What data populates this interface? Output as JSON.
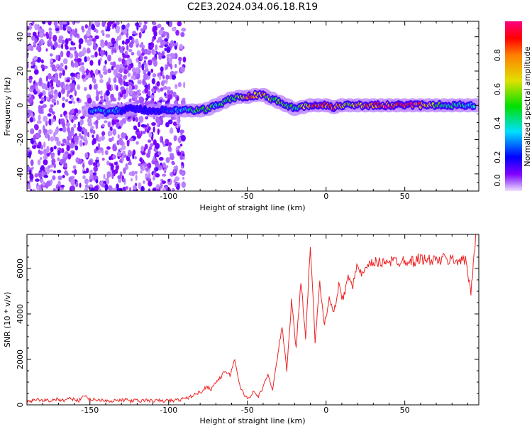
{
  "title": "C2E3.2024.034.06.18.R19",
  "chart_data": [
    {
      "type": "heatmap",
      "xlabel": "Height of straight line (km)",
      "ylabel": "Frequency (Hz)",
      "xlim": [
        -190,
        97
      ],
      "ylim": [
        -50,
        49
      ],
      "xticks": [
        -150,
        -100,
        -50,
        0,
        50
      ],
      "yticks": [
        -40,
        -20,
        0,
        20,
        40
      ],
      "colorbar": {
        "label": "Normalized spectral amplitude",
        "range": [
          0,
          1
        ],
        "ticks": [
          "0.0",
          "0.2",
          "0.4",
          "0.6",
          "0.8"
        ]
      },
      "noise_region_km": [
        -190,
        -90
      ],
      "ridge": [
        [
          -150,
          -3,
          0.3
        ],
        [
          -145,
          -3,
          0.35
        ],
        [
          -140,
          -4,
          0.3
        ],
        [
          -135,
          -3,
          0.35
        ],
        [
          -130,
          -3,
          0.25
        ],
        [
          -125,
          -2,
          0.2
        ],
        [
          -110,
          -3,
          0.2
        ],
        [
          -100,
          -3,
          0.25
        ],
        [
          -95,
          -3,
          0.3
        ],
        [
          -90,
          -3,
          0.35
        ],
        [
          -85,
          -3,
          0.5
        ],
        [
          -80,
          -3,
          0.55
        ],
        [
          -75,
          -2,
          0.6
        ],
        [
          -70,
          0,
          0.45
        ],
        [
          -65,
          2,
          0.5
        ],
        [
          -60,
          4,
          0.5
        ],
        [
          -55,
          5,
          0.6
        ],
        [
          -50,
          5,
          0.9
        ],
        [
          -45,
          6,
          0.7
        ],
        [
          -40,
          6,
          0.75
        ],
        [
          -35,
          4,
          0.55
        ],
        [
          -30,
          2,
          0.6
        ],
        [
          -25,
          0,
          0.5
        ],
        [
          -20,
          -2,
          0.5
        ],
        [
          -15,
          -1,
          0.6
        ],
        [
          -10,
          0,
          0.75
        ],
        [
          -5,
          0,
          0.9
        ],
        [
          0,
          0,
          0.85
        ],
        [
          5,
          -1,
          0.9
        ],
        [
          10,
          0,
          0.7
        ],
        [
          15,
          0,
          0.6
        ],
        [
          20,
          0,
          0.7
        ],
        [
          25,
          0,
          0.8
        ],
        [
          30,
          0,
          0.85
        ],
        [
          35,
          0,
          0.9
        ],
        [
          40,
          0,
          0.92
        ],
        [
          45,
          0,
          0.95
        ],
        [
          50,
          0,
          0.95
        ],
        [
          55,
          0,
          0.93
        ],
        [
          60,
          0,
          0.9
        ],
        [
          65,
          0,
          0.7
        ],
        [
          70,
          0,
          0.55
        ],
        [
          75,
          0,
          0.45
        ],
        [
          80,
          0,
          0.45
        ],
        [
          85,
          0,
          0.4
        ],
        [
          90,
          0,
          0.4
        ],
        [
          95,
          0,
          0.35
        ]
      ]
    },
    {
      "type": "line",
      "xlabel": "Height of straight line (km)",
      "ylabel": "SNR (10 * v/v)",
      "xlim": [
        -190,
        97
      ],
      "ylim": [
        0,
        7500
      ],
      "xticks": [
        -150,
        -100,
        -50,
        0,
        50
      ],
      "yticks": [
        0,
        2000,
        4000,
        6000
      ],
      "color": "#ee2222",
      "x_start": -190,
      "x_step": 3,
      "values": [
        200,
        150,
        250,
        180,
        220,
        170,
        260,
        190,
        210,
        300,
        240,
        180,
        450,
        220,
        260,
        200,
        230,
        190,
        170,
        210,
        180,
        240,
        160,
        200,
        150,
        220,
        180,
        170,
        190,
        160,
        200,
        180,
        220,
        250,
        300,
        400,
        500,
        600,
        800,
        700,
        1000,
        1200,
        1500,
        1300,
        2000,
        900,
        400,
        300,
        600,
        350,
        800,
        1300,
        700,
        2000,
        3500,
        1500,
        4500,
        2500,
        5500,
        3000,
        7100,
        2800,
        5300,
        3500,
        4800,
        4000,
        5200,
        4600,
        5800,
        5300,
        6100,
        5700,
        6000,
        6200,
        6300,
        6200,
        6400,
        6300,
        6350,
        6300,
        6400,
        6350,
        6300,
        6450,
        6400,
        6350,
        6400,
        6300,
        6450,
        6350,
        6400,
        6350,
        6400,
        6300,
        4900,
        7500
      ]
    }
  ]
}
